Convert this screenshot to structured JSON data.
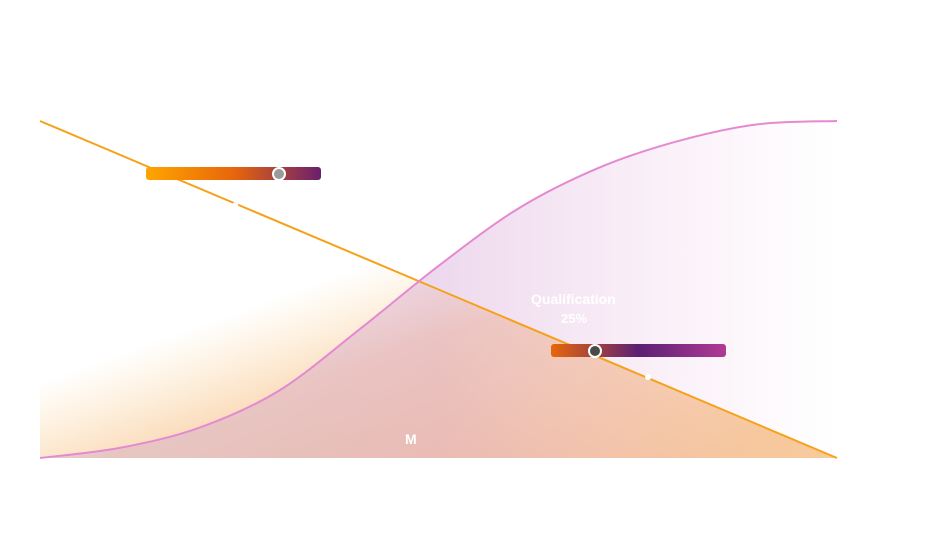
{
  "chart_data": {
    "type": "area",
    "x_range": [
      0,
      1
    ],
    "y_range": [
      0,
      1
    ],
    "grid": false,
    "series": [
      {
        "key": "declining",
        "color": "#f5a21a",
        "points": [
          [
            0,
            1
          ],
          [
            1,
            0
          ]
        ]
      },
      {
        "key": "sigmoid",
        "color": "#e58ad0",
        "points": [
          [
            0,
            0
          ],
          [
            0.1,
            0.03
          ],
          [
            0.2,
            0.09
          ],
          [
            0.3,
            0.2
          ],
          [
            0.4,
            0.38
          ],
          [
            0.5,
            0.57
          ],
          [
            0.6,
            0.74
          ],
          [
            0.7,
            0.86
          ],
          [
            0.8,
            0.94
          ],
          [
            0.9,
            0.99
          ],
          [
            1,
            1
          ]
        ]
      }
    ]
  },
  "sliders": [
    {
      "name": "left-slider",
      "value": 0.76,
      "thumb_color": "#9a9a9a",
      "gradient": [
        "#ffa500",
        "#e8660a",
        "#6a1f6e"
      ]
    },
    {
      "name": "right-slider",
      "value": 0.25,
      "thumb_color": "#4a4a4a",
      "gradient": [
        "#e8660a",
        "#5b1f73",
        "#b03a96"
      ]
    }
  ],
  "overlay": {
    "stage_label": "Qualification",
    "stage_value": "25%",
    "marker_label": "M"
  }
}
